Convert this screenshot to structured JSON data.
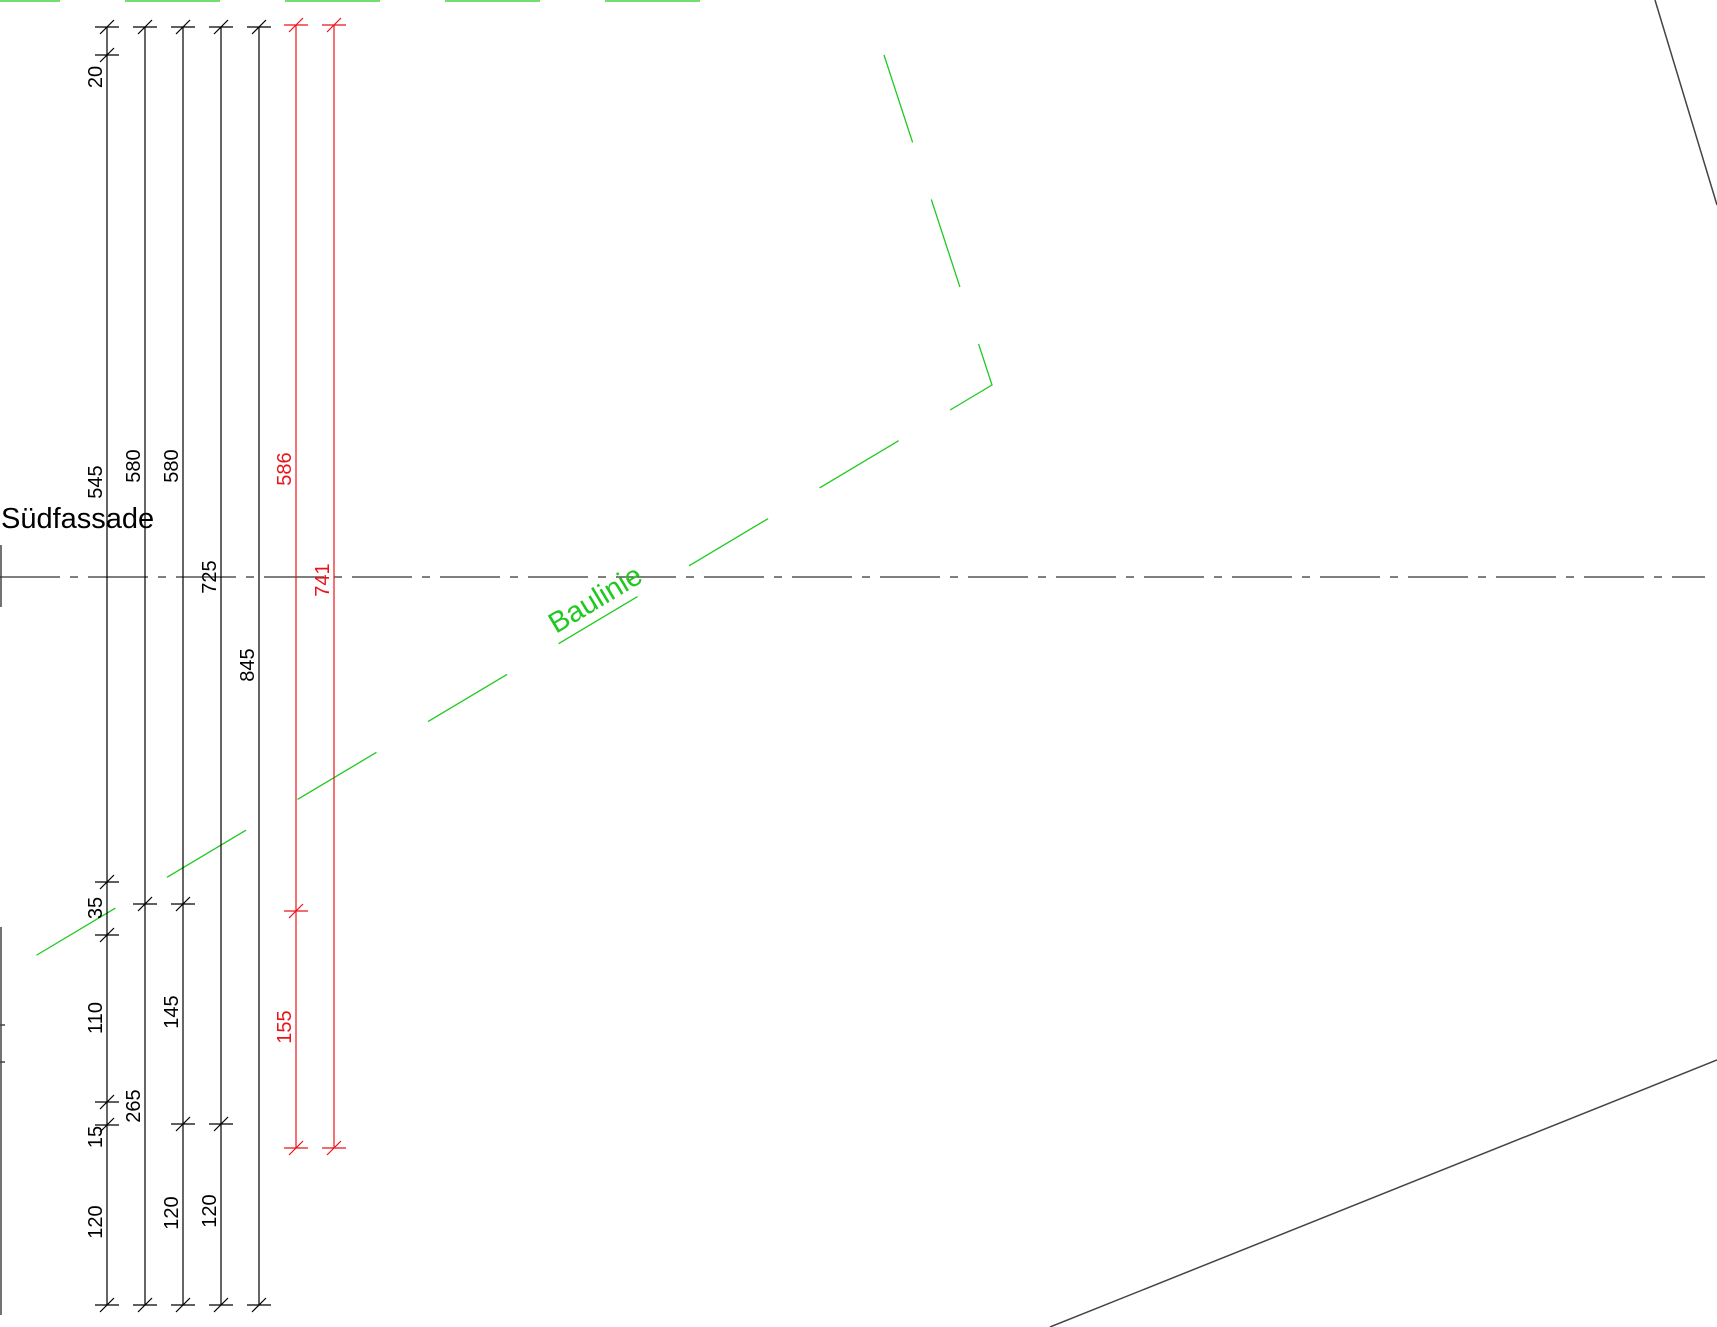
{
  "colors": {
    "dimension": "#000000",
    "dimension_highlight": "#e8141b",
    "building_line": "#1fc91f",
    "outline": "#444444",
    "axis": "#333333"
  },
  "labels": {
    "facade_title": "Südfassade",
    "building_line": "Baulinie"
  },
  "dimensions": {
    "col1": [
      "20",
      "545",
      "35",
      "110",
      "15",
      "120"
    ],
    "col2": [
      "580",
      "265"
    ],
    "col3": [
      "580",
      "145",
      "120"
    ],
    "col4": [
      "725",
      "120"
    ],
    "col5": [
      "845"
    ],
    "red1": [
      "586",
      "155"
    ],
    "red2": [
      "741"
    ]
  }
}
